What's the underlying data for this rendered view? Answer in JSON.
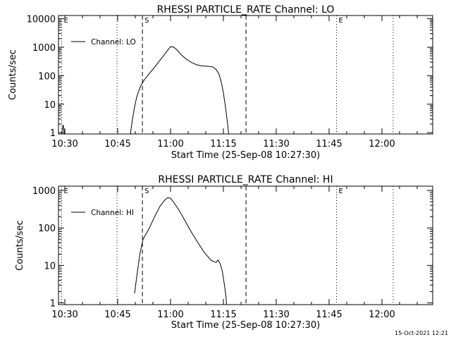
{
  "footer": {
    "timestamp": "15-Oct-2021 12:21"
  },
  "chart_data": [
    {
      "type": "line",
      "title": "RHESSI PARTICLE_RATE Channel: LO",
      "xlabel": "Start Time (25-Sep-08 10:27:30)",
      "ylabel": "Counts/sec",
      "ylog": true,
      "xlim": [
        10.47,
        12.24
      ],
      "ylim": [
        0.9,
        13000
      ],
      "xticks": [
        {
          "value": 10.5,
          "label": "10:30"
        },
        {
          "value": 10.75,
          "label": "10:45"
        },
        {
          "value": 11.0,
          "label": "11:00"
        },
        {
          "value": 11.25,
          "label": "11:15"
        },
        {
          "value": 11.5,
          "label": "11:30"
        },
        {
          "value": 11.75,
          "label": "11:45"
        },
        {
          "value": 12.0,
          "label": "12:00"
        }
      ],
      "yticks": [
        {
          "value": 1,
          "label": "1"
        },
        {
          "value": 10,
          "label": "10"
        },
        {
          "value": 100,
          "label": "100"
        },
        {
          "value": 1000,
          "label": "1000"
        },
        {
          "value": 10000,
          "label": "10000"
        }
      ],
      "legend": {
        "position": "top-left",
        "entries": [
          "Channel: LO"
        ]
      },
      "markers": [
        {
          "x": 10.485,
          "style": "dotted",
          "label": "E"
        },
        {
          "x": 10.747,
          "style": "dotted",
          "label": ""
        },
        {
          "x": 10.867,
          "style": "dashed",
          "label": "S"
        },
        {
          "x": 11.357,
          "style": "dashed",
          "label": ""
        },
        {
          "x": 11.785,
          "style": "dotted",
          "label": "E"
        },
        {
          "x": 12.053,
          "style": "dotted",
          "label": ""
        }
      ],
      "series": [
        {
          "name": "Channel: LO",
          "segments": [
            [
              [
                10.485,
                0.9
              ],
              [
                10.492,
                1.9
              ],
              [
                10.498,
                0.9
              ]
            ],
            [
              [
                10.81,
                0.9
              ],
              [
                10.82,
                3
              ],
              [
                10.83,
                8
              ],
              [
                10.84,
                18
              ],
              [
                10.85,
                30
              ],
              [
                10.86,
                45
              ],
              [
                10.875,
                70
              ],
              [
                10.9,
                120
              ],
              [
                10.925,
                200
              ],
              [
                10.95,
                350
              ],
              [
                10.975,
                600
              ],
              [
                10.99,
                850
              ],
              [
                11.0,
                1050
              ],
              [
                11.015,
                1000
              ],
              [
                11.03,
                820
              ],
              [
                11.05,
                550
              ],
              [
                11.075,
                380
              ],
              [
                11.1,
                290
              ],
              [
                11.125,
                240
              ],
              [
                11.15,
                220
              ],
              [
                11.175,
                215
              ],
              [
                11.2,
                205
              ],
              [
                11.215,
                170
              ],
              [
                11.23,
                110
              ],
              [
                11.24,
                60
              ],
              [
                11.25,
                25
              ],
              [
                11.26,
                8
              ],
              [
                11.27,
                2
              ],
              [
                11.275,
                0.9
              ]
            ]
          ]
        }
      ]
    },
    {
      "type": "line",
      "title": "RHESSI PARTICLE_RATE Channel: HI",
      "xlabel": "Start Time (25-Sep-08 10:27:30)",
      "ylabel": "Counts/sec",
      "ylog": true,
      "xlim": [
        10.47,
        12.24
      ],
      "ylim": [
        0.9,
        1300
      ],
      "xticks": [
        {
          "value": 10.5,
          "label": "10:30"
        },
        {
          "value": 10.75,
          "label": "10:45"
        },
        {
          "value": 11.0,
          "label": "11:00"
        },
        {
          "value": 11.25,
          "label": "11:15"
        },
        {
          "value": 11.5,
          "label": "11:30"
        },
        {
          "value": 11.75,
          "label": "11:45"
        },
        {
          "value": 12.0,
          "label": "12:00"
        }
      ],
      "yticks": [
        {
          "value": 1,
          "label": "1"
        },
        {
          "value": 10,
          "label": "10"
        },
        {
          "value": 100,
          "label": "100"
        },
        {
          "value": 1000,
          "label": "1000"
        }
      ],
      "legend": {
        "position": "top-left",
        "entries": [
          "Channel: HI"
        ]
      },
      "markers": [
        {
          "x": 10.485,
          "style": "dotted",
          "label": "E"
        },
        {
          "x": 10.747,
          "style": "dotted",
          "label": ""
        },
        {
          "x": 10.867,
          "style": "dashed",
          "label": "S"
        },
        {
          "x": 11.357,
          "style": "dashed",
          "label": ""
        },
        {
          "x": 11.785,
          "style": "dotted",
          "label": "E"
        },
        {
          "x": 12.053,
          "style": "dotted",
          "label": ""
        }
      ],
      "series": [
        {
          "name": "Channel: HI",
          "segments": [
            [
              [
                10.83,
                1.8
              ],
              [
                10.835,
                3
              ],
              [
                10.845,
                8
              ],
              [
                10.855,
                20
              ],
              [
                10.87,
                50
              ],
              [
                10.9,
                100
              ],
              [
                10.925,
                200
              ],
              [
                10.95,
                380
              ],
              [
                10.97,
                530
              ],
              [
                10.985,
                640
              ],
              [
                11.0,
                620
              ],
              [
                11.015,
                480
              ],
              [
                11.04,
                300
              ],
              [
                11.07,
                150
              ],
              [
                11.1,
                75
              ],
              [
                11.13,
                40
              ],
              [
                11.16,
                22
              ],
              [
                11.19,
                14
              ],
              [
                11.2,
                13
              ],
              [
                11.215,
                12
              ],
              [
                11.225,
                14
              ],
              [
                11.235,
                11
              ],
              [
                11.245,
                7
              ],
              [
                11.255,
                3
              ],
              [
                11.262,
                1.5
              ],
              [
                11.265,
                0.9
              ]
            ]
          ]
        }
      ]
    }
  ]
}
